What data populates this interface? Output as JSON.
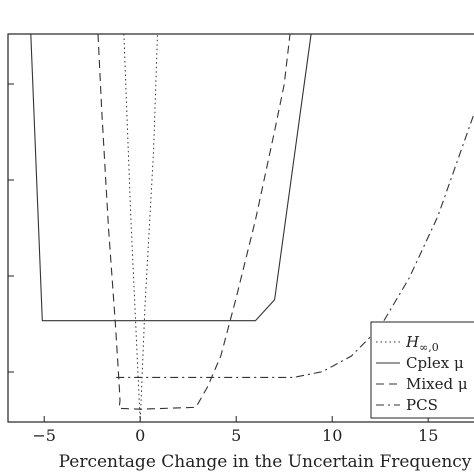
{
  "chart_data": {
    "type": "line",
    "xlabel": "Percentage Change in the Uncertain Frequency",
    "x_ticks": [
      "−5",
      "0",
      "5",
      "10",
      "15"
    ],
    "x_tick_values": [
      -5,
      0,
      5,
      10,
      15
    ],
    "xlim": [
      -6.7,
      17.5
    ],
    "ylim": [
      0,
      10
    ],
    "grid": false,
    "legend_placement": "bottom-right",
    "series": [
      {
        "name": "H∞,0",
        "name_main": "H",
        "name_sub": "∞,0",
        "style": "dotted",
        "points": [
          [
            -0.85,
            10
          ],
          [
            -0.5,
            5.4
          ],
          [
            0.0,
            0.0
          ],
          [
            0.25,
            3.0
          ],
          [
            0.7,
            7.0
          ],
          [
            0.9,
            10
          ]
        ]
      },
      {
        "name": "Cplex μ",
        "style": "solid",
        "points": [
          [
            -5.7,
            10
          ],
          [
            -5.1,
            2.61
          ],
          [
            6.0,
            2.61
          ],
          [
            7.0,
            3.15
          ],
          [
            8.9,
            10
          ]
        ]
      },
      {
        "name": "Mixed μ",
        "style": "dashed",
        "points": [
          [
            -2.2,
            10
          ],
          [
            -2.0,
            8.0
          ],
          [
            -1.65,
            5.0
          ],
          [
            -1.3,
            2.6
          ],
          [
            -1.1,
            1.0
          ],
          [
            -1.05,
            0.55
          ],
          [
            -1.1,
            0.35
          ],
          [
            0.0,
            0.33
          ],
          [
            2.9,
            0.38
          ],
          [
            3.5,
            0.9
          ],
          [
            4.2,
            1.7
          ],
          [
            5.0,
            3.2
          ],
          [
            6.0,
            5.2
          ],
          [
            7.0,
            7.5
          ],
          [
            7.5,
            8.7
          ],
          [
            7.8,
            10
          ]
        ]
      },
      {
        "name": "PCS",
        "style": "dashdot",
        "points": [
          [
            -1.25,
            1.15
          ],
          [
            0.0,
            1.15
          ],
          [
            8.0,
            1.15
          ],
          [
            9.5,
            1.3
          ],
          [
            11.0,
            1.7
          ],
          [
            12.5,
            2.45
          ],
          [
            14.0,
            3.7
          ],
          [
            15.5,
            5.3
          ],
          [
            16.5,
            6.7
          ],
          [
            17.5,
            8.1
          ]
        ]
      }
    ]
  }
}
